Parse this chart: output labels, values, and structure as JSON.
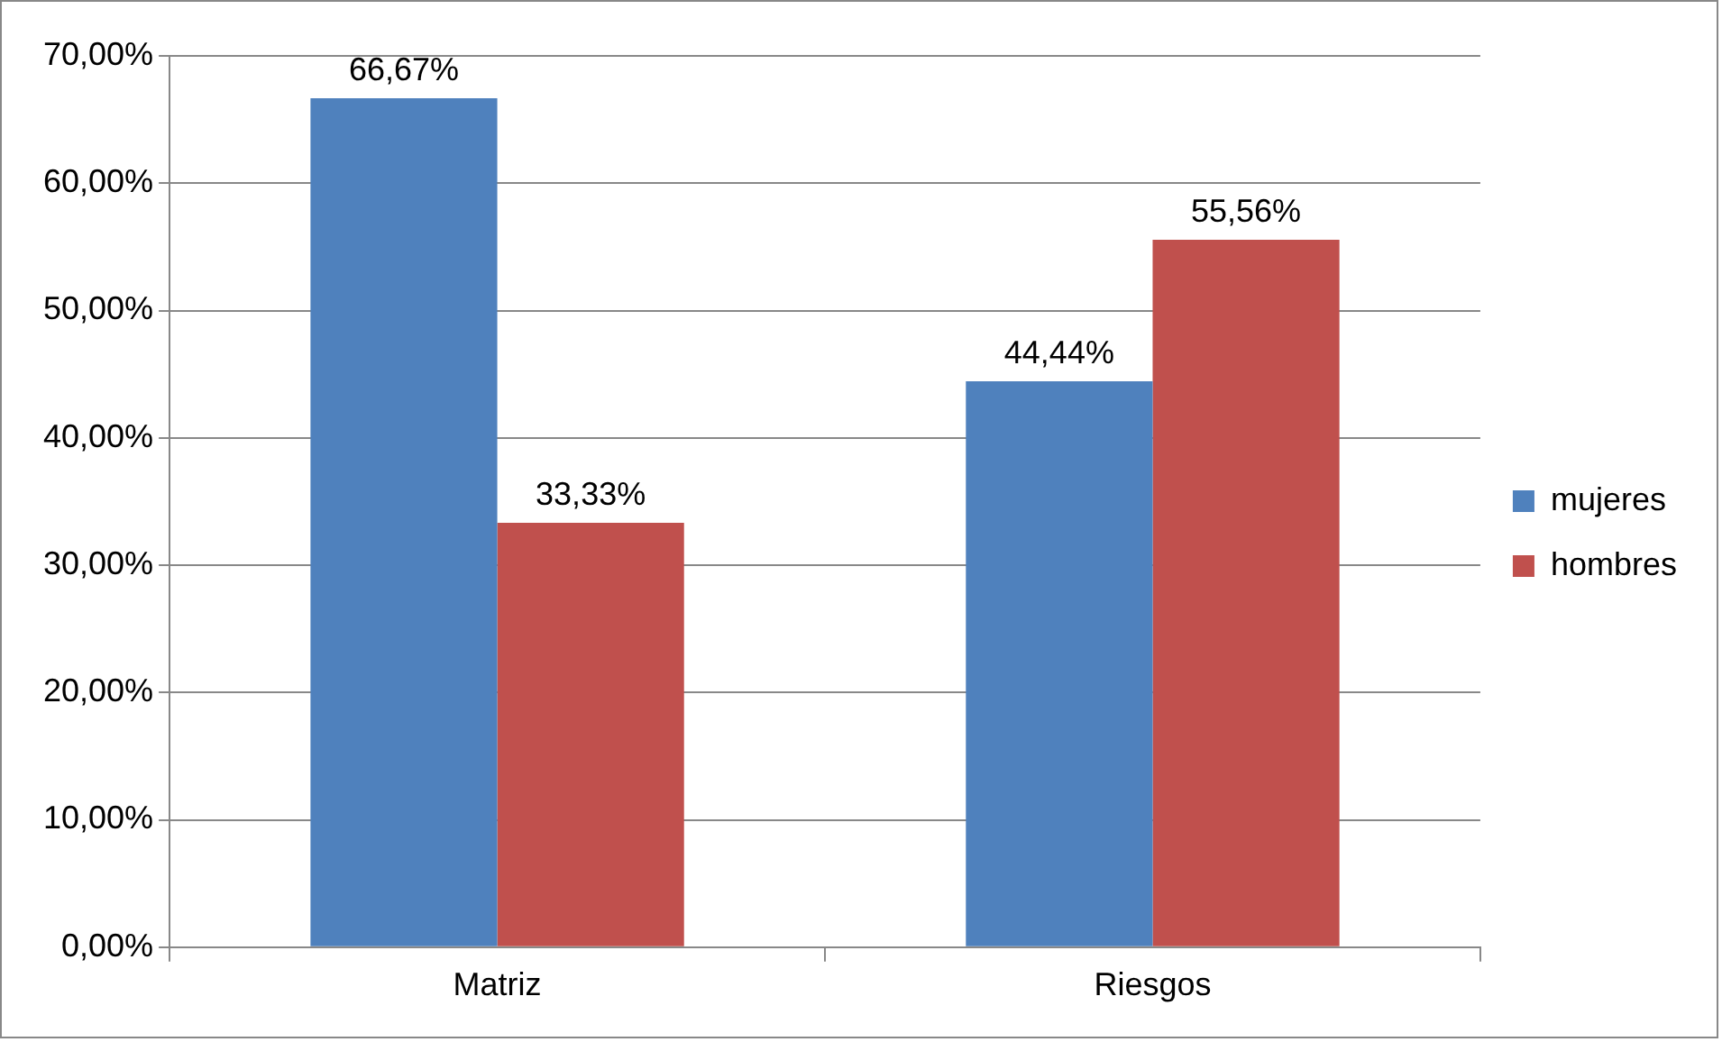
{
  "chart_data": {
    "type": "bar",
    "categories": [
      "Matriz",
      "Riesgos"
    ],
    "series": [
      {
        "name": "mujeres",
        "color": "#4f81bd",
        "values": [
          66.67,
          44.44
        ],
        "value_labels": [
          "66,67%",
          "44,44%"
        ]
      },
      {
        "name": "hombres",
        "color": "#c0504d",
        "values": [
          33.33,
          55.56
        ],
        "value_labels": [
          "33,33%",
          "55,56%"
        ]
      }
    ],
    "ylim": [
      0,
      70
    ],
    "yticks": [
      {
        "value": 0,
        "label": "0,00%"
      },
      {
        "value": 10,
        "label": "10,00%"
      },
      {
        "value": 20,
        "label": "20,00%"
      },
      {
        "value": 30,
        "label": "30,00%"
      },
      {
        "value": 40,
        "label": "40,00%"
      },
      {
        "value": 50,
        "label": "50,00%"
      },
      {
        "value": 60,
        "label": "60,00%"
      },
      {
        "value": 70,
        "label": "70,00%"
      }
    ],
    "grid": "y",
    "legend": "right"
  }
}
